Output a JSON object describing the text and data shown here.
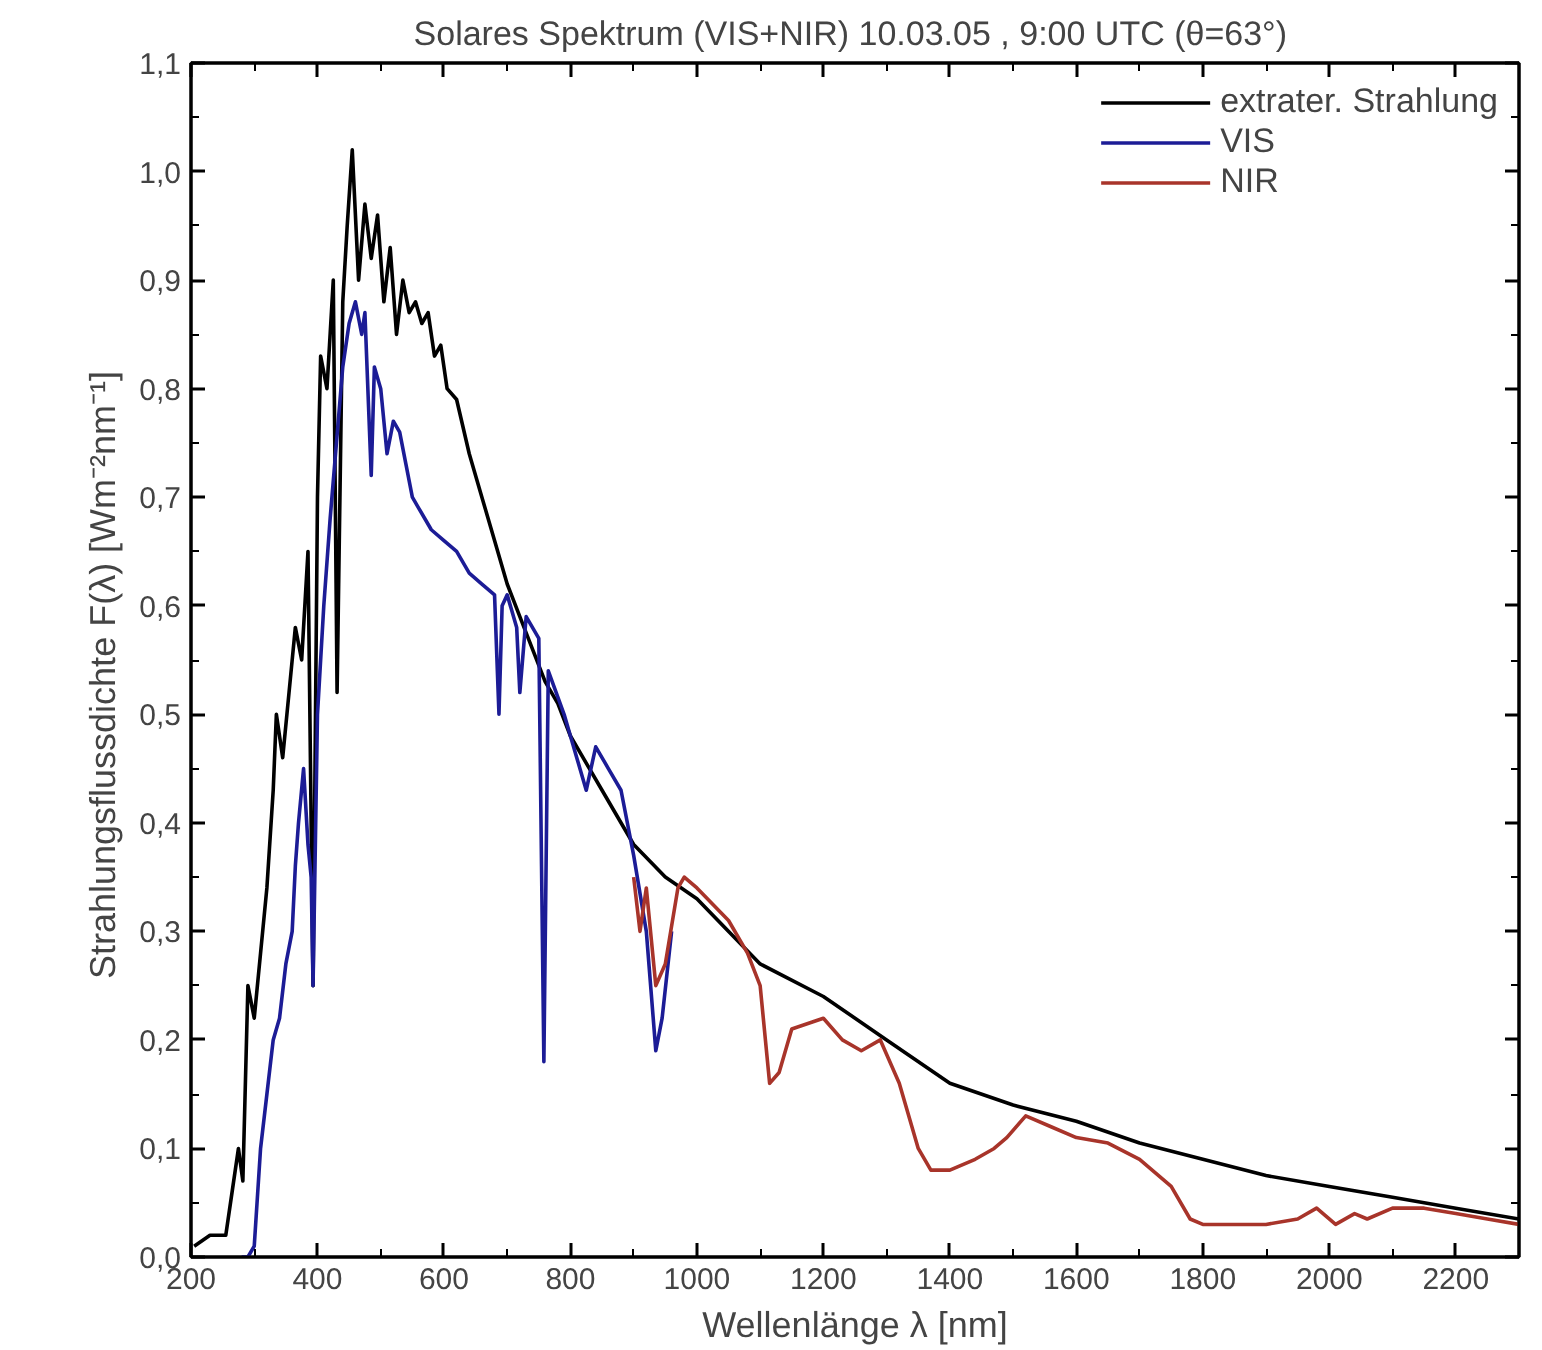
{
  "chart_data": {
    "type": "line",
    "title": "Solares Spektrum (VIS+NIR)  10.03.05 , 9:00 UTC (θ=63°)",
    "xlabel": "Wellenlänge λ [nm]",
    "ylabel": "Strahlungsflussdichte  F(λ)   [Wm⁻²nm⁻¹]",
    "xlim": [
      200,
      2300
    ],
    "ylim": [
      0,
      1.1
    ],
    "xticks": [
      200,
      400,
      600,
      800,
      1000,
      1200,
      1400,
      1600,
      1800,
      2000,
      2200
    ],
    "yticks": [
      {
        "value": 0,
        "label": "0,0"
      },
      {
        "value": 0.1,
        "label": "0,1"
      },
      {
        "value": 0.2,
        "label": "0,2"
      },
      {
        "value": 0.3,
        "label": "0,3"
      },
      {
        "value": 0.4,
        "label": "0,4"
      },
      {
        "value": 0.5,
        "label": "0,5"
      },
      {
        "value": 0.6,
        "label": "0,6"
      },
      {
        "value": 0.7,
        "label": "0,7"
      },
      {
        "value": 0.8,
        "label": "0,8"
      },
      {
        "value": 0.9,
        "label": "0,9"
      },
      {
        "value": 1.0,
        "label": "1,0"
      },
      {
        "value": 1.1,
        "label": "1,1"
      }
    ],
    "grid": false,
    "legend": "top right",
    "marker": "none",
    "line_style": "solid",
    "series": [
      {
        "name": "extrater. Strahlung",
        "color": "#000000",
        "x": [
          205,
          230,
          255,
          265,
          275,
          282,
          290,
          300,
          310,
          320,
          330,
          335,
          345,
          355,
          365,
          375,
          385,
          393,
          400,
          405,
          415,
          425,
          431,
          440,
          447,
          455,
          465,
          475,
          485,
          495,
          505,
          515,
          525,
          535,
          545,
          555,
          565,
          575,
          585,
          595,
          605,
          620,
          640,
          660,
          680,
          700,
          720,
          740,
          760,
          780,
          800,
          850,
          900,
          950,
          1000,
          1100,
          1200,
          1300,
          1400,
          1500,
          1600,
          1700,
          1800,
          1900,
          2000,
          2100,
          2200,
          2300
        ],
        "values": [
          0.01,
          0.02,
          0.02,
          0.06,
          0.1,
          0.07,
          0.25,
          0.22,
          0.28,
          0.34,
          0.43,
          0.5,
          0.46,
          0.52,
          0.58,
          0.55,
          0.65,
          0.25,
          0.7,
          0.83,
          0.8,
          0.9,
          0.52,
          0.88,
          0.95,
          1.02,
          0.9,
          0.97,
          0.92,
          0.96,
          0.88,
          0.93,
          0.85,
          0.9,
          0.87,
          0.88,
          0.86,
          0.87,
          0.83,
          0.84,
          0.8,
          0.79,
          0.74,
          0.7,
          0.66,
          0.62,
          0.59,
          0.56,
          0.53,
          0.51,
          0.48,
          0.43,
          0.38,
          0.35,
          0.33,
          0.27,
          0.24,
          0.2,
          0.16,
          0.14,
          0.125,
          0.105,
          0.09,
          0.075,
          0.065,
          0.055,
          0.045,
          0.035
        ]
      },
      {
        "name": "VIS",
        "color": "#1c1c96",
        "x": [
          280,
          290,
          300,
          310,
          320,
          330,
          340,
          350,
          360,
          365,
          370,
          378,
          385,
          390,
          393,
          400,
          410,
          420,
          430,
          440,
          450,
          460,
          470,
          475,
          485,
          490,
          500,
          510,
          520,
          530,
          540,
          550,
          560,
          580,
          600,
          620,
          640,
          660,
          680,
          687,
          692,
          700,
          715,
          720,
          730,
          750,
          758,
          765,
          790,
          810,
          825,
          840,
          860,
          880,
          900,
          920,
          935,
          945,
          960
        ],
        "values": [
          0.0,
          0.0,
          0.01,
          0.1,
          0.15,
          0.2,
          0.22,
          0.27,
          0.3,
          0.36,
          0.4,
          0.45,
          0.38,
          0.35,
          0.25,
          0.5,
          0.6,
          0.68,
          0.75,
          0.82,
          0.86,
          0.88,
          0.85,
          0.87,
          0.72,
          0.82,
          0.8,
          0.74,
          0.77,
          0.76,
          0.73,
          0.7,
          0.69,
          0.67,
          0.66,
          0.65,
          0.63,
          0.62,
          0.61,
          0.5,
          0.6,
          0.61,
          0.58,
          0.52,
          0.59,
          0.57,
          0.18,
          0.54,
          0.5,
          0.46,
          0.43,
          0.47,
          0.45,
          0.43,
          0.37,
          0.3,
          0.19,
          0.22,
          0.3
        ]
      },
      {
        "name": "NIR",
        "color": "#a8342a",
        "x": [
          900,
          910,
          920,
          935,
          950,
          970,
          980,
          1000,
          1050,
          1080,
          1100,
          1115,
          1130,
          1150,
          1200,
          1230,
          1260,
          1290,
          1320,
          1350,
          1370,
          1400,
          1440,
          1470,
          1490,
          1520,
          1560,
          1600,
          1650,
          1700,
          1750,
          1780,
          1800,
          1850,
          1900,
          1950,
          1980,
          2010,
          2040,
          2060,
          2100,
          2150,
          2200,
          2250,
          2300
        ],
        "values": [
          0.35,
          0.3,
          0.34,
          0.25,
          0.27,
          0.34,
          0.35,
          0.34,
          0.31,
          0.28,
          0.25,
          0.16,
          0.17,
          0.21,
          0.22,
          0.2,
          0.19,
          0.2,
          0.16,
          0.1,
          0.08,
          0.08,
          0.09,
          0.1,
          0.11,
          0.13,
          0.12,
          0.11,
          0.105,
          0.09,
          0.065,
          0.035,
          0.03,
          0.03,
          0.03,
          0.035,
          0.045,
          0.03,
          0.04,
          0.035,
          0.045,
          0.045,
          0.04,
          0.035,
          0.03
        ]
      }
    ]
  }
}
